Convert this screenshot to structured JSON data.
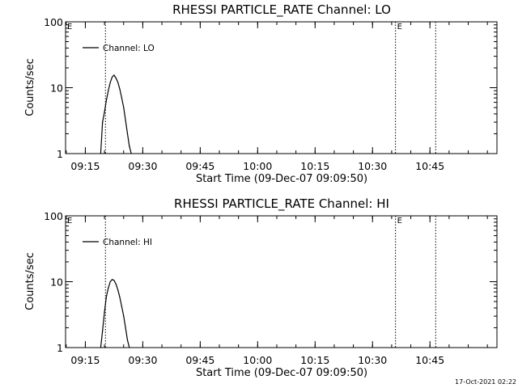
{
  "footer": {
    "timestamp": "17-Oct-2021 02:22"
  },
  "chart_data": [
    {
      "type": "line",
      "title": "RHESSI PARTICLE_RATE Channel: LO",
      "xlabel": "Start Time (09-Dec-07 09:09:50)",
      "ylabel": "Counts/sec",
      "yscale": "log",
      "ylim": [
        1,
        100
      ],
      "xlim": [
        "09:09:50",
        "11:02:30"
      ],
      "xticks": [
        "09:15",
        "09:30",
        "09:45",
        "10:00",
        "10:15",
        "10:30",
        "10:45"
      ],
      "yticks": [
        "1",
        "10",
        "100"
      ],
      "grid": false,
      "legend": "top-left",
      "series": [
        {
          "name": "Channel: LO",
          "color": "#000000",
          "x": [
            "09:19:00",
            "09:19:30",
            "09:20:00",
            "09:20:30",
            "09:21:00",
            "09:21:30",
            "09:22:00",
            "09:22:30",
            "09:23:00",
            "09:23:30",
            "09:24:00",
            "09:24:30",
            "09:25:00",
            "09:25:30",
            "09:26:00",
            "09:26:30",
            "09:27:00"
          ],
          "y": [
            1.0,
            3.0,
            4.3,
            6.5,
            9.0,
            12.0,
            14.5,
            15.5,
            14.0,
            12.0,
            9.5,
            7.0,
            5.0,
            3.2,
            2.0,
            1.3,
            1.0
          ]
        }
      ],
      "markers": [
        {
          "time": "09:20:15",
          "label": ""
        },
        {
          "time": "10:36:00",
          "label": "E"
        },
        {
          "time": "10:46:30",
          "label": ""
        }
      ],
      "corner_label": "E"
    },
    {
      "type": "line",
      "title": "RHESSI PARTICLE_RATE Channel: HI",
      "xlabel": "Start Time (09-Dec-07 09:09:50)",
      "ylabel": "Counts/sec",
      "yscale": "log",
      "ylim": [
        1,
        100
      ],
      "xlim": [
        "09:09:50",
        "11:02:30"
      ],
      "xticks": [
        "09:15",
        "09:30",
        "09:45",
        "10:00",
        "10:15",
        "10:30",
        "10:45"
      ],
      "yticks": [
        "1",
        "10",
        "100"
      ],
      "grid": false,
      "legend": "top-left",
      "series": [
        {
          "name": "Channel: HI",
          "color": "#000000",
          "x": [
            "09:19:00",
            "09:19:30",
            "09:20:00",
            "09:20:30",
            "09:21:00",
            "09:21:30",
            "09:22:00",
            "09:22:30",
            "09:23:00",
            "09:23:30",
            "09:24:00",
            "09:24:30",
            "09:25:00",
            "09:25:30",
            "09:26:00",
            "09:26:30"
          ],
          "y": [
            1.0,
            1.8,
            3.5,
            6.0,
            8.0,
            10.0,
            10.8,
            10.5,
            9.2,
            7.5,
            5.8,
            4.2,
            3.0,
            2.0,
            1.3,
            1.0
          ]
        }
      ],
      "markers": [
        {
          "time": "09:20:15",
          "label": ""
        },
        {
          "time": "10:36:00",
          "label": "E"
        },
        {
          "time": "10:46:30",
          "label": ""
        }
      ],
      "corner_label": "E"
    }
  ]
}
